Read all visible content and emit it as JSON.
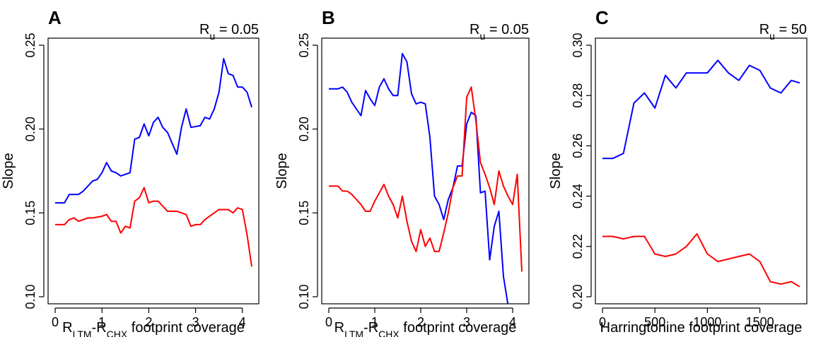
{
  "chart_data": [
    {
      "type": "line",
      "panel": "A",
      "title_prefix": "R",
      "title_sub": "u",
      "title_suffix": " = 0.05",
      "xlabel_parts": [
        "R",
        "LTM",
        "-R",
        "CHX",
        " footprint coverage"
      ],
      "ylabel": "Slope",
      "xlim": [
        0,
        4.2
      ],
      "ylim": [
        0.1,
        0.25
      ],
      "xticks": [
        0,
        1,
        2,
        3,
        4
      ],
      "xtick_labels": [
        "0",
        "1",
        "2",
        "3",
        "4"
      ],
      "yticks": [
        0.1,
        0.15,
        0.2,
        0.25
      ],
      "ytick_labels": [
        "0.10",
        "0.15",
        "0.20",
        "0.25"
      ],
      "colors": {
        "series1": "#0000ff",
        "series2": "#ff0000"
      },
      "series": [
        {
          "color": "#0000ff",
          "x": [
            0,
            0.2,
            0.3,
            0.5,
            0.6,
            0.7,
            0.8,
            0.9,
            1.0,
            1.1,
            1.2,
            1.3,
            1.4,
            1.6,
            1.7,
            1.8,
            1.9,
            2.0,
            2.1,
            2.2,
            2.3,
            2.4,
            2.6,
            2.7,
            2.8,
            2.9,
            3.1,
            3.2,
            3.3,
            3.4,
            3.5,
            3.6,
            3.7,
            3.8,
            3.9,
            4.0,
            4.1,
            4.2
          ],
          "y": [
            0.156,
            0.156,
            0.161,
            0.161,
            0.163,
            0.166,
            0.169,
            0.17,
            0.174,
            0.18,
            0.175,
            0.174,
            0.172,
            0.174,
            0.194,
            0.195,
            0.203,
            0.196,
            0.204,
            0.207,
            0.201,
            0.198,
            0.185,
            0.201,
            0.212,
            0.201,
            0.202,
            0.207,
            0.206,
            0.212,
            0.222,
            0.242,
            0.233,
            0.232,
            0.225,
            0.225,
            0.222,
            0.213
          ]
        },
        {
          "color": "#ff0000",
          "x": [
            0,
            0.2,
            0.3,
            0.4,
            0.5,
            0.7,
            0.8,
            1.0,
            1.1,
            1.2,
            1.3,
            1.4,
            1.5,
            1.6,
            1.7,
            1.8,
            1.9,
            2.0,
            2.1,
            2.2,
            2.3,
            2.4,
            2.6,
            2.7,
            2.8,
            2.9,
            3.0,
            3.1,
            3.2,
            3.3,
            3.4,
            3.5,
            3.6,
            3.7,
            3.8,
            3.9,
            4.0,
            4.1,
            4.2
          ],
          "y": [
            0.143,
            0.143,
            0.146,
            0.147,
            0.145,
            0.147,
            0.147,
            0.148,
            0.149,
            0.145,
            0.145,
            0.138,
            0.142,
            0.141,
            0.157,
            0.159,
            0.165,
            0.156,
            0.157,
            0.157,
            0.154,
            0.151,
            0.151,
            0.15,
            0.149,
            0.142,
            0.143,
            0.143,
            0.146,
            0.148,
            0.15,
            0.152,
            0.152,
            0.152,
            0.15,
            0.153,
            0.152,
            0.137,
            0.118
          ]
        }
      ]
    },
    {
      "type": "line",
      "panel": "B",
      "title_prefix": "R",
      "title_sub": "u",
      "title_suffix": " = 0.05",
      "xlabel_parts": [
        "R",
        "LTM",
        "-R",
        "CHX",
        " footprint coverage"
      ],
      "ylabel": "Slope",
      "xlim": [
        0,
        4.2
      ],
      "ylim": [
        0.1,
        0.25
      ],
      "xticks": [
        0,
        1,
        2,
        3,
        4
      ],
      "xtick_labels": [
        "0",
        "1",
        "2",
        "3",
        "4"
      ],
      "yticks": [
        0.1,
        0.15,
        0.2,
        0.25
      ],
      "ytick_labels": [
        "0.10",
        "0.15",
        "0.20",
        "0.25"
      ],
      "colors": {
        "series1": "#0000ff",
        "series2": "#ff0000"
      },
      "series": [
        {
          "color": "#0000ff",
          "x": [
            0,
            0.2,
            0.3,
            0.4,
            0.5,
            0.6,
            0.7,
            0.8,
            0.9,
            1.0,
            1.1,
            1.2,
            1.3,
            1.4,
            1.5,
            1.6,
            1.7,
            1.8,
            1.9,
            2.0,
            2.1,
            2.2,
            2.3,
            2.4,
            2.5,
            2.6,
            2.7,
            2.8,
            2.9,
            3.0,
            3.1,
            3.2,
            3.3,
            3.4,
            3.5,
            3.6,
            3.7,
            3.8,
            3.9
          ],
          "y": [
            0.224,
            0.224,
            0.225,
            0.222,
            0.216,
            0.212,
            0.208,
            0.223,
            0.218,
            0.214,
            0.225,
            0.23,
            0.224,
            0.22,
            0.22,
            0.245,
            0.24,
            0.221,
            0.215,
            0.216,
            0.215,
            0.195,
            0.16,
            0.155,
            0.146,
            0.158,
            0.165,
            0.178,
            0.178,
            0.203,
            0.21,
            0.208,
            0.162,
            0.163,
            0.122,
            0.142,
            0.151,
            0.112,
            0.095
          ]
        },
        {
          "color": "#ff0000",
          "x": [
            0,
            0.2,
            0.3,
            0.4,
            0.5,
            0.6,
            0.7,
            0.8,
            0.9,
            1.0,
            1.1,
            1.2,
            1.3,
            1.4,
            1.5,
            1.6,
            1.7,
            1.8,
            1.9,
            2.0,
            2.1,
            2.2,
            2.3,
            2.4,
            2.5,
            2.6,
            2.7,
            2.8,
            2.9,
            3.0,
            3.1,
            3.2,
            3.3,
            3.4,
            3.5,
            3.6,
            3.7,
            3.8,
            3.9,
            4.0,
            4.1,
            4.2
          ],
          "y": [
            0.166,
            0.166,
            0.163,
            0.163,
            0.161,
            0.158,
            0.155,
            0.151,
            0.151,
            0.157,
            0.162,
            0.167,
            0.16,
            0.155,
            0.147,
            0.16,
            0.145,
            0.133,
            0.127,
            0.14,
            0.13,
            0.135,
            0.127,
            0.127,
            0.138,
            0.15,
            0.165,
            0.172,
            0.172,
            0.219,
            0.225,
            0.205,
            0.18,
            0.173,
            0.165,
            0.155,
            0.175,
            0.166,
            0.16,
            0.155,
            0.173,
            0.115
          ]
        }
      ]
    },
    {
      "type": "line",
      "panel": "C",
      "title_prefix": "R",
      "title_sub": "u",
      "title_suffix": " = 50",
      "xlabel_parts": [
        "Harringtonine footprint coverage"
      ],
      "ylabel": "Slope",
      "xlim": [
        0,
        1880
      ],
      "ylim": [
        0.2,
        0.3
      ],
      "xticks": [
        0,
        500,
        1000,
        1500
      ],
      "xtick_labels": [
        "0",
        "500",
        "1000",
        "1500"
      ],
      "yticks": [
        0.2,
        0.22,
        0.24,
        0.26,
        0.28,
        0.3
      ],
      "ytick_labels": [
        "0.20",
        "0.22",
        "0.24",
        "0.26",
        "0.28",
        "0.30"
      ],
      "colors": {
        "series1": "#0000ff",
        "series2": "#ff0000"
      },
      "series": [
        {
          "color": "#0000ff",
          "x": [
            0,
            100,
            200,
            300,
            400,
            500,
            600,
            700,
            800,
            900,
            1000,
            1100,
            1200,
            1300,
            1400,
            1500,
            1600,
            1700,
            1800,
            1880
          ],
          "y": [
            0.255,
            0.255,
            0.257,
            0.277,
            0.281,
            0.275,
            0.288,
            0.283,
            0.289,
            0.289,
            0.289,
            0.294,
            0.289,
            0.286,
            0.292,
            0.29,
            0.283,
            0.281,
            0.286,
            0.285
          ]
        },
        {
          "color": "#ff0000",
          "x": [
            0,
            100,
            200,
            300,
            400,
            500,
            600,
            700,
            800,
            900,
            1000,
            1100,
            1200,
            1300,
            1400,
            1500,
            1600,
            1700,
            1800,
            1880
          ],
          "y": [
            0.224,
            0.224,
            0.223,
            0.224,
            0.224,
            0.217,
            0.216,
            0.217,
            0.22,
            0.225,
            0.217,
            0.214,
            0.215,
            0.216,
            0.217,
            0.214,
            0.206,
            0.205,
            0.206,
            0.204
          ]
        }
      ]
    }
  ]
}
